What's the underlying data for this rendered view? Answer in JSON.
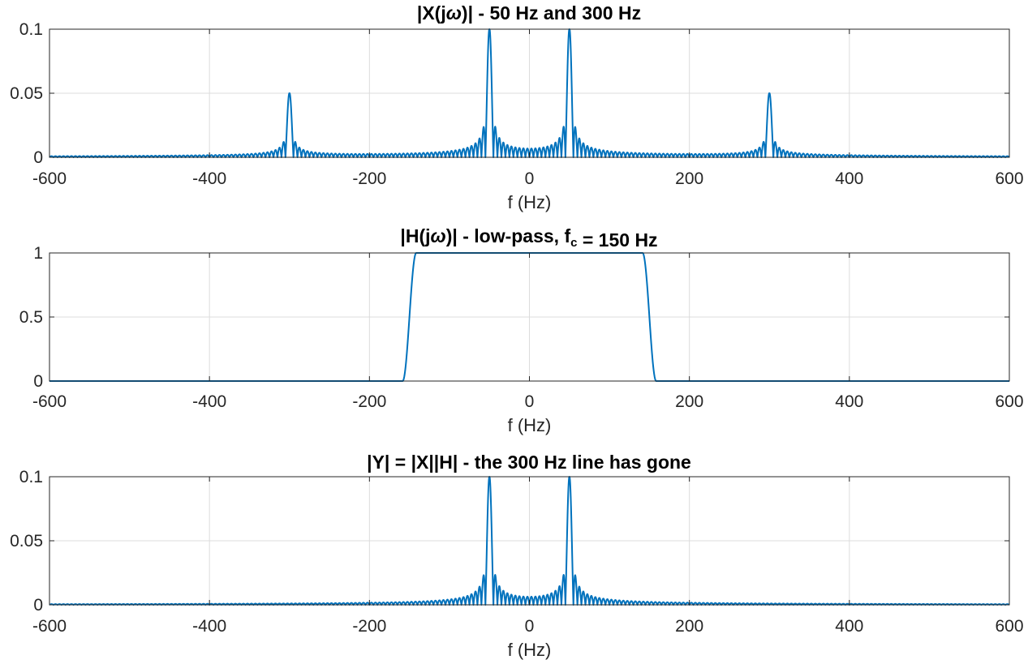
{
  "figure": {
    "line_color": "#0072BD",
    "grid": true
  },
  "chart_data": [
    {
      "type": "line",
      "title": "|X(jω)|   -   50  Hz  and  300  Hz",
      "title_parts": [
        {
          "text": "|X(j"
        },
        {
          "text": "ω",
          "italic": true
        },
        {
          "text": ")|   -   50  Hz  and  300  Hz"
        }
      ],
      "xlabel": "f (Hz)",
      "ylabel": "",
      "xlim": [
        -600,
        600
      ],
      "ylim": [
        0,
        0.1
      ],
      "xticks": [
        -600,
        -400,
        -200,
        0,
        200,
        400,
        600
      ],
      "xtick_labels": [
        "-600",
        "-400",
        "-200",
        "0",
        "200",
        "400",
        "600"
      ],
      "yticks": [
        0,
        0.05,
        0.1
      ],
      "ytick_labels": [
        "0",
        "0.05",
        "0.1"
      ],
      "series": [
        {
          "peaks": [
            {
              "f": -300,
              "amplitude": 0.05
            },
            {
              "f": -50,
              "amplitude": 0.1
            },
            {
              "f": 50,
              "amplitude": 0.1
            },
            {
              "f": 300,
              "amplitude": 0.05
            }
          ],
          "lobe_spacing_hz": 5
        }
      ]
    },
    {
      "type": "line",
      "title": "|H(jω)|   -   low-pass,  fc  =  150  Hz",
      "title_parts": [
        {
          "text": "|H(j"
        },
        {
          "text": "ω",
          "italic": true
        },
        {
          "text": ")|   -   low-pass,  f"
        },
        {
          "text": "c",
          "sub": true
        },
        {
          "text": "  =  150  Hz"
        }
      ],
      "xlabel": "f (Hz)",
      "ylabel": "",
      "xlim": [
        -600,
        600
      ],
      "ylim": [
        0,
        1
      ],
      "xticks": [
        -600,
        -400,
        -200,
        0,
        200,
        400,
        600
      ],
      "xtick_labels": [
        "-600",
        "-400",
        "-200",
        "0",
        "200",
        "400",
        "600"
      ],
      "yticks": [
        0,
        0.5,
        1
      ],
      "ytick_labels": [
        "0",
        "0.5",
        "1"
      ],
      "series": [
        {
          "cutoff_hz": 150,
          "passband_gain": 1,
          "transition_width_hz": 17
        }
      ]
    },
    {
      "type": "line",
      "title": "|Y| = |X||H|  -  the 300 Hz line has gone",
      "title_parts": [
        {
          "text": "|Y| = |X||H|  -  the 300 Hz line has gone"
        }
      ],
      "xlabel": "f (Hz)",
      "ylabel": "",
      "xlim": [
        -600,
        600
      ],
      "ylim": [
        0,
        0.1
      ],
      "xticks": [
        -600,
        -400,
        -200,
        0,
        200,
        400,
        600
      ],
      "xtick_labels": [
        "-600",
        "-400",
        "-200",
        "0",
        "200",
        "400",
        "600"
      ],
      "yticks": [
        0,
        0.05,
        0.1
      ],
      "ytick_labels": [
        "0",
        "0.05",
        "0.1"
      ],
      "series": [
        {
          "peaks": [
            {
              "f": -50,
              "amplitude": 0.1
            },
            {
              "f": 50,
              "amplitude": 0.1
            }
          ],
          "lobe_spacing_hz": 5
        }
      ]
    }
  ]
}
